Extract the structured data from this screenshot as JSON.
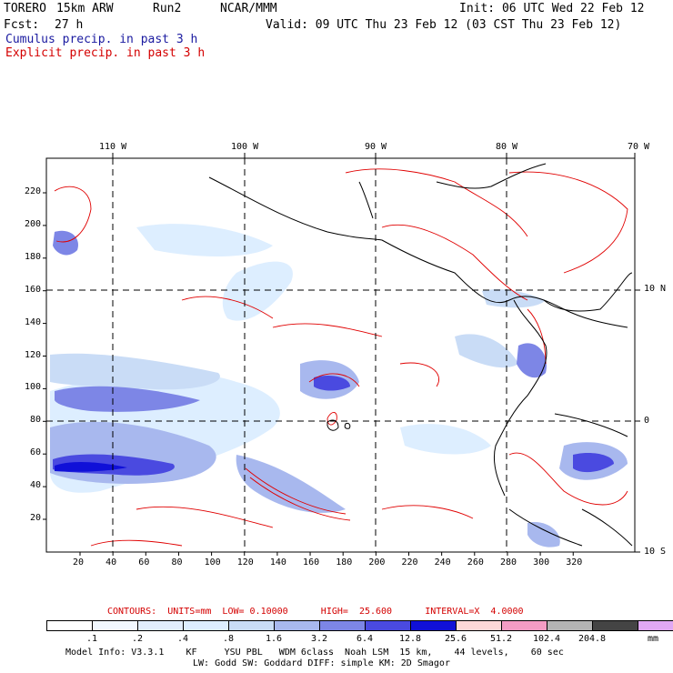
{
  "header": {
    "model": "TORERO",
    "resolution": "15km ARW",
    "run": "Run2",
    "org": "NCAR/MMM",
    "init": "Init: 06 UTC Wed 22 Feb 12",
    "fcst_label": "Fcst:",
    "fcst_value": "27 h",
    "valid": "Valid: 09 UTC Thu 23 Feb 12 (03 CST Thu 23 Feb 12)"
  },
  "legend": {
    "cumulus": "Cumulus precip. in past 3 h",
    "explicit": "Explicit precip. in past 3 h"
  },
  "map": {
    "lon_labels": [
      "110 W",
      "100 W",
      "90 W",
      "80 W",
      "70 W"
    ],
    "lat_labels": [
      "10 N",
      "0",
      "10 S"
    ],
    "x_ticks": [
      "20",
      "40",
      "60",
      "80",
      "100",
      "120",
      "140",
      "160",
      "180",
      "200",
      "220",
      "240",
      "260",
      "280",
      "300",
      "320"
    ],
    "y_ticks": [
      "20",
      "40",
      "60",
      "80",
      "100",
      "120",
      "140",
      "160",
      "180",
      "200",
      "220"
    ]
  },
  "contours_line": "CONTOURS:  UNITS=mm  LOW= 0.10000      HIGH=  25.600      INTERVAL=X  4.0000",
  "colorbar": {
    "colors": [
      "#ffffff",
      "#f2f8ff",
      "#e2eefc",
      "#ddeeff",
      "#c9dcf6",
      "#a8b8ee",
      "#7d86e6",
      "#4a4ae0",
      "#1010d8",
      "#fcd8d8",
      "#f49cc4",
      "#b4b4b4",
      "#444444",
      "#e0a8f4"
    ],
    "labels": [
      ".1",
      ".2",
      ".4",
      ".8",
      "1.6",
      "3.2",
      "6.4",
      "12.8",
      "25.6",
      "51.2",
      "102.4",
      "204.8"
    ],
    "unit": "mm"
  },
  "footer": {
    "line1": "Model Info: V3.3.1    KF     YSU PBL   WDM 6class  Noah LSM  15 km,    44 levels,    60 sec",
    "line2": "LW: Godd SW: Goddard DIFF: simple KM: 2D Smagor"
  }
}
